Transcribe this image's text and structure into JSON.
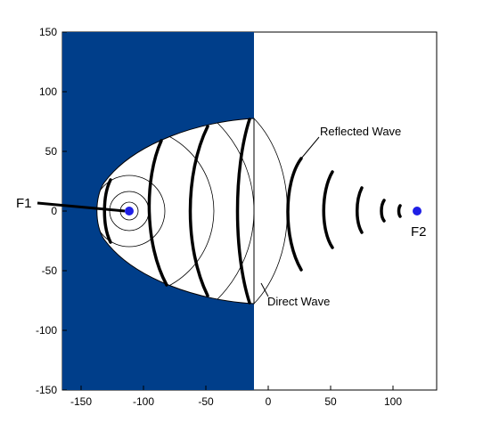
{
  "diagram": {
    "axes": {
      "x_ticks": [
        -150,
        -100,
        -50,
        0,
        50,
        100
      ],
      "y_ticks": [
        150,
        100,
        50,
        0,
        -50,
        -100,
        -150
      ],
      "xlim": [
        -165,
        135
      ],
      "ylim": [
        -150,
        150
      ]
    },
    "colors": {
      "reflector": "#003E8A",
      "focus": "#1F1FE6",
      "line": "#000000",
      "cavity": "#ffffff"
    },
    "labels": {
      "f1": "F1",
      "f2": "F2",
      "reflected_wave": "Reflected Wave",
      "direct_wave": "Direct Wave"
    },
    "foci": {
      "f1": {
        "x": -112,
        "y": 0
      },
      "f2": {
        "x": 116,
        "y": 0
      }
    }
  }
}
